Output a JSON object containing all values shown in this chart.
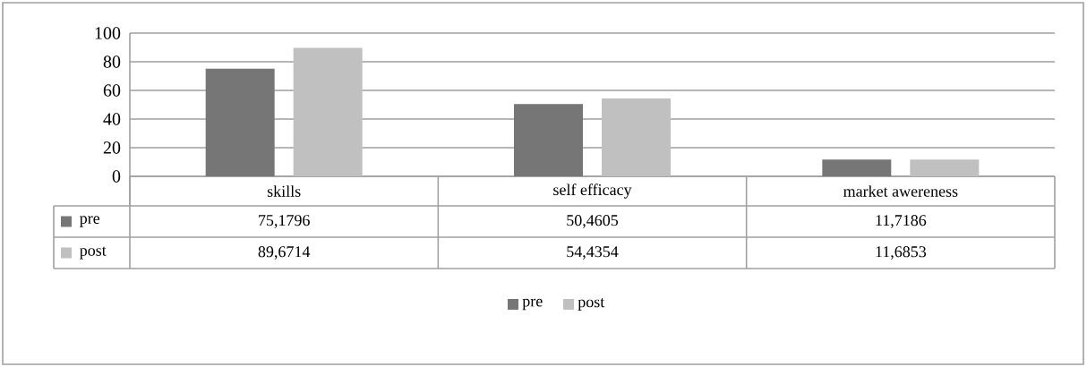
{
  "chart_data": {
    "type": "bar",
    "categories": [
      "skills",
      "self efficacy",
      "market awereness"
    ],
    "series": [
      {
        "name": "pre",
        "color": "#767676",
        "values": [
          75.1796,
          50.4605,
          11.7186
        ],
        "value_labels": [
          "75,1796",
          "50,4605",
          "11,7186"
        ]
      },
      {
        "name": "post",
        "color": "#c0c0c0",
        "values": [
          89.6714,
          54.4354,
          11.6853
        ],
        "value_labels": [
          "89,6714",
          "54,4354",
          "11,6853"
        ]
      }
    ],
    "ylim": [
      0,
      100
    ],
    "yticks": [
      0,
      20,
      40,
      60,
      80,
      100
    ],
    "grid": "y",
    "legend": "bottom"
  }
}
